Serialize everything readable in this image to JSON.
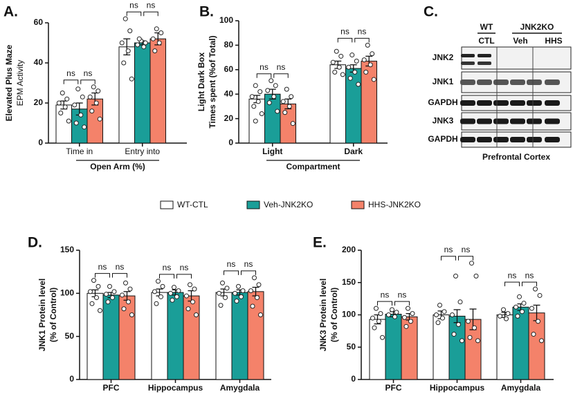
{
  "legend": [
    {
      "name": "WT-CTL",
      "color": "#ffffff"
    },
    {
      "name": "Veh-JNK2KO",
      "color": "#1a9e98"
    },
    {
      "name": "HHS-JNK2KO",
      "color": "#f4826a"
    }
  ],
  "chart_data": [
    {
      "type": "bar",
      "panel": "A.",
      "ytitle": [
        "Elevated Plus Maze",
        "EPM Activity"
      ],
      "categories": [
        "Time in",
        "Entry into"
      ],
      "xlabel": "Open Arm (%)",
      "ylim": [
        0,
        60
      ],
      "yticks": [
        0,
        20,
        40,
        60
      ],
      "significance": [
        [
          "ns",
          "ns"
        ],
        [
          "ns",
          "ns"
        ]
      ],
      "series": [
        {
          "values": [
            19,
            48
          ],
          "errors": [
            2,
            4
          ],
          "points": [
            [
              25,
              22,
              20,
              18,
              15,
              11
            ],
            [
              62,
              56,
              50,
              46,
              40,
              32
            ]
          ]
        },
        {
          "values": [
            17,
            50
          ],
          "errors": [
            3,
            1
          ],
          "points": [
            [
              27,
              23,
              19,
              14,
              10,
              8
            ],
            [
              51,
              50,
              49,
              48,
              52
            ]
          ]
        },
        {
          "values": [
            22,
            52
          ],
          "errors": [
            3,
            3
          ],
          "points": [
            [
              28,
              26,
              23,
              20,
              16,
              12
            ],
            [
              57,
              55,
              52,
              50,
              46
            ]
          ]
        }
      ]
    },
    {
      "type": "bar",
      "panel": "B.",
      "ytitle": [
        "Light Dark Box",
        "Times spent (%of Total)"
      ],
      "categories": [
        "Light",
        "Dark"
      ],
      "xlabel": "Compartment",
      "ylim": [
        0,
        100
      ],
      "yticks": [
        0,
        20,
        40,
        60,
        80,
        100
      ],
      "significance": [
        [
          "ns",
          "ns"
        ],
        [
          "ns",
          "ns"
        ]
      ],
      "series": [
        {
          "values": [
            36,
            64
          ],
          "errors": [
            3,
            3
          ],
          "points": [
            [
              47,
              42,
              38,
              34,
              30,
              24,
              18
            ],
            [
              75,
              71,
              66,
              62,
              58,
              56
            ]
          ]
        },
        {
          "values": [
            40,
            61
          ],
          "errors": [
            4,
            3
          ],
          "points": [
            [
              51,
              47,
              43,
              38,
              33,
              26
            ],
            [
              72,
              67,
              62,
              58,
              53,
              48
            ]
          ]
        },
        {
          "values": [
            32,
            67
          ],
          "errors": [
            4,
            4
          ],
          "points": [
            [
              44,
              38,
              34,
              30,
              25,
              16
            ],
            [
              80,
              73,
              68,
              64,
              58,
              52
            ]
          ]
        }
      ]
    },
    {
      "type": "bar",
      "panel": "D.",
      "ytitle": [
        "JNK1 Protein level",
        "(% of Control)"
      ],
      "categories": [
        "PFC",
        "Hippocampus",
        "Amygdala"
      ],
      "ylim": [
        0,
        150
      ],
      "yticks": [
        0,
        50,
        100,
        150
      ],
      "significance": [
        [
          "ns",
          "ns"
        ],
        [
          "ns",
          "ns"
        ],
        [
          "ns",
          "ns"
        ]
      ],
      "series": [
        {
          "values": [
            100,
            101,
            101
          ],
          "errors": [
            4,
            4,
            4
          ],
          "points": [
            [
              115,
              108,
              102,
              95,
              88,
              80
            ],
            [
              114,
              108,
              102,
              96,
              88
            ],
            [
              112,
              106,
              100,
              95,
              86
            ]
          ]
        },
        {
          "values": [
            98,
            101,
            101
          ],
          "errors": [
            3,
            3,
            3
          ],
          "points": [
            [
              108,
              102,
              99,
              95,
              90
            ],
            [
              107,
              103,
              100,
              96,
              92
            ],
            [
              108,
              103,
              100,
              96,
              91
            ]
          ]
        },
        {
          "values": [
            97,
            97,
            102
          ],
          "errors": [
            5,
            6,
            5
          ],
          "points": [
            [
              112,
              105,
              98,
              90,
              82,
              75
            ],
            [
              110,
              105,
              97,
              90,
              82,
              75
            ],
            [
              118,
              110,
              103,
              95,
              85,
              75
            ]
          ]
        }
      ]
    },
    {
      "type": "bar",
      "panel": "E.",
      "ytitle": [
        "JNK3 Protein level",
        "(% of Control)"
      ],
      "categories": [
        "PFC",
        "Hippocampus",
        "Amygdala"
      ],
      "ylim": [
        0,
        200
      ],
      "yticks": [
        0,
        50,
        100,
        150,
        200
      ],
      "significance": [
        [
          "ns",
          "ns"
        ],
        [
          "ns",
          "ns"
        ],
        [
          "ns",
          "ns"
        ]
      ],
      "series": [
        {
          "values": [
            93,
            100,
            100
          ],
          "errors": [
            7,
            6,
            4
          ],
          "points": [
            [
              110,
              102,
              95,
              90,
              80,
              65
            ],
            [
              115,
              105,
              100,
              95,
              88
            ],
            [
              108,
              102,
              98,
              94
            ]
          ]
        },
        {
          "values": [
            101,
            98,
            112
          ],
          "errors": [
            4,
            10,
            5
          ],
          "points": [
            [
              108,
              104,
              100,
              97
            ],
            [
              160,
              120,
              100,
              85,
              70,
              60
            ],
            [
              128,
              118,
              112,
              105,
              98
            ]
          ]
        },
        {
          "values": [
            97,
            93,
            103
          ],
          "errors": [
            5,
            16,
            12
          ],
          "points": [
            [
              110,
              102,
              96,
              90,
              82
            ],
            [
              180,
              160,
              90,
              80,
              65,
              60
            ],
            [
              140,
              130,
              110,
              90,
              70,
              60
            ]
          ]
        }
      ]
    }
  ],
  "blot": {
    "panel": "C.",
    "groups": [
      "WT",
      "JNK2KO"
    ],
    "lanes": [
      "CTL",
      "Veh",
      "HHS"
    ],
    "rows": [
      "JNK2",
      "JNK1",
      "GAPDH",
      "JNK3",
      "GAPDH"
    ],
    "footer": "Prefrontal Cortex"
  }
}
